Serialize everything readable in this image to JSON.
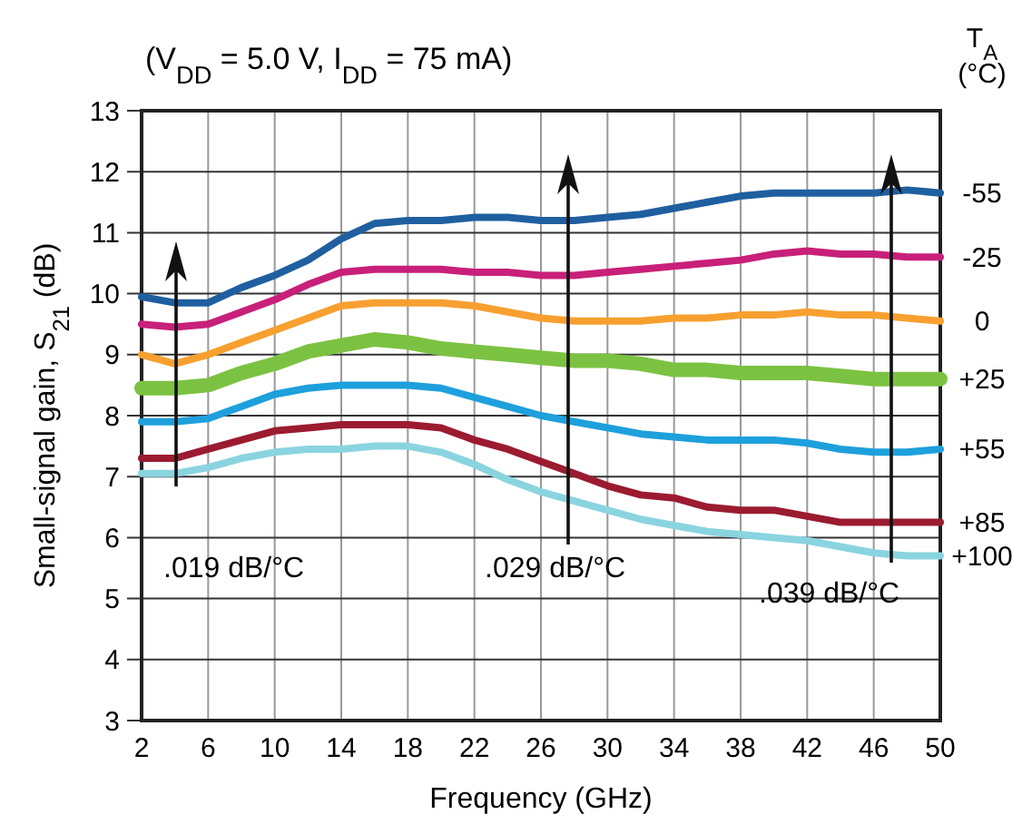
{
  "chart_data": {
    "type": "line",
    "title": "(V$_{DD}$ = 5.0 V,  I$_{DD}$ = 75 mA)",
    "xlabel": "Frequency (GHz)",
    "ylabel": "Small-signal gain, S$_{21}$ (dB)",
    "legend_title": "T$_{A}$ (°C)",
    "legend": "right",
    "grid": true,
    "x": [
      2,
      4,
      6,
      8,
      10,
      12,
      14,
      16,
      18,
      20,
      22,
      24,
      26,
      28,
      30,
      32,
      34,
      36,
      38,
      40,
      42,
      44,
      46,
      48,
      50
    ],
    "xlim": [
      2,
      50
    ],
    "xticks": [
      2,
      6,
      10,
      14,
      18,
      22,
      26,
      30,
      34,
      38,
      42,
      46,
      50
    ],
    "ylim": [
      3,
      13
    ],
    "yticks": [
      3,
      4,
      5,
      6,
      7,
      8,
      9,
      10,
      11,
      12,
      13
    ],
    "series": [
      {
        "name": "-55",
        "color": "#1f5fa0",
        "values": [
          9.95,
          9.85,
          9.85,
          10.1,
          10.3,
          10.55,
          10.9,
          11.15,
          11.2,
          11.2,
          11.25,
          11.25,
          11.2,
          11.2,
          11.25,
          11.3,
          11.4,
          11.5,
          11.6,
          11.65,
          11.65,
          11.65,
          11.65,
          11.7,
          11.65
        ]
      },
      {
        "name": "-25",
        "color": "#c8207a",
        "values": [
          9.5,
          9.45,
          9.5,
          9.7,
          9.9,
          10.15,
          10.35,
          10.4,
          10.4,
          10.4,
          10.35,
          10.35,
          10.3,
          10.3,
          10.35,
          10.4,
          10.45,
          10.5,
          10.55,
          10.65,
          10.7,
          10.65,
          10.65,
          10.6,
          10.6
        ]
      },
      {
        "name": "0",
        "color": "#f7a030",
        "values": [
          9.0,
          8.85,
          9.0,
          9.2,
          9.4,
          9.6,
          9.8,
          9.85,
          9.85,
          9.85,
          9.8,
          9.7,
          9.6,
          9.55,
          9.55,
          9.55,
          9.6,
          9.6,
          9.65,
          9.65,
          9.7,
          9.65,
          9.65,
          9.6,
          9.55
        ]
      },
      {
        "name": "+25",
        "color": "#7cc242",
        "values": [
          8.45,
          8.45,
          8.5,
          8.7,
          8.85,
          9.05,
          9.15,
          9.25,
          9.2,
          9.1,
          9.05,
          9.0,
          8.95,
          8.9,
          8.9,
          8.85,
          8.75,
          8.75,
          8.7,
          8.7,
          8.7,
          8.65,
          8.6,
          8.6,
          8.6
        ]
      },
      {
        "name": "+55",
        "color": "#1ea0dc",
        "values": [
          7.9,
          7.9,
          7.95,
          8.15,
          8.35,
          8.45,
          8.5,
          8.5,
          8.5,
          8.45,
          8.3,
          8.15,
          8.0,
          7.9,
          7.8,
          7.7,
          7.65,
          7.6,
          7.6,
          7.6,
          7.55,
          7.45,
          7.4,
          7.4,
          7.45
        ]
      },
      {
        "name": "+85",
        "color": "#9b1b30",
        "values": [
          7.3,
          7.3,
          7.45,
          7.6,
          7.75,
          7.8,
          7.85,
          7.85,
          7.85,
          7.8,
          7.6,
          7.45,
          7.25,
          7.05,
          6.85,
          6.7,
          6.65,
          6.5,
          6.45,
          6.45,
          6.35,
          6.25,
          6.25,
          6.25,
          6.25
        ]
      },
      {
        "name": "+100",
        "color": "#8ad4e0",
        "values": [
          7.05,
          7.05,
          7.15,
          7.3,
          7.4,
          7.45,
          7.45,
          7.5,
          7.5,
          7.4,
          7.2,
          6.95,
          6.75,
          6.6,
          6.45,
          6.3,
          6.2,
          6.1,
          6.05,
          6.0,
          5.95,
          5.85,
          5.75,
          5.7,
          5.7
        ]
      }
    ],
    "annotations": [
      ".019 dB/°C",
      ".029 dB/°C",
      ".039 dB/°C"
    ]
  }
}
